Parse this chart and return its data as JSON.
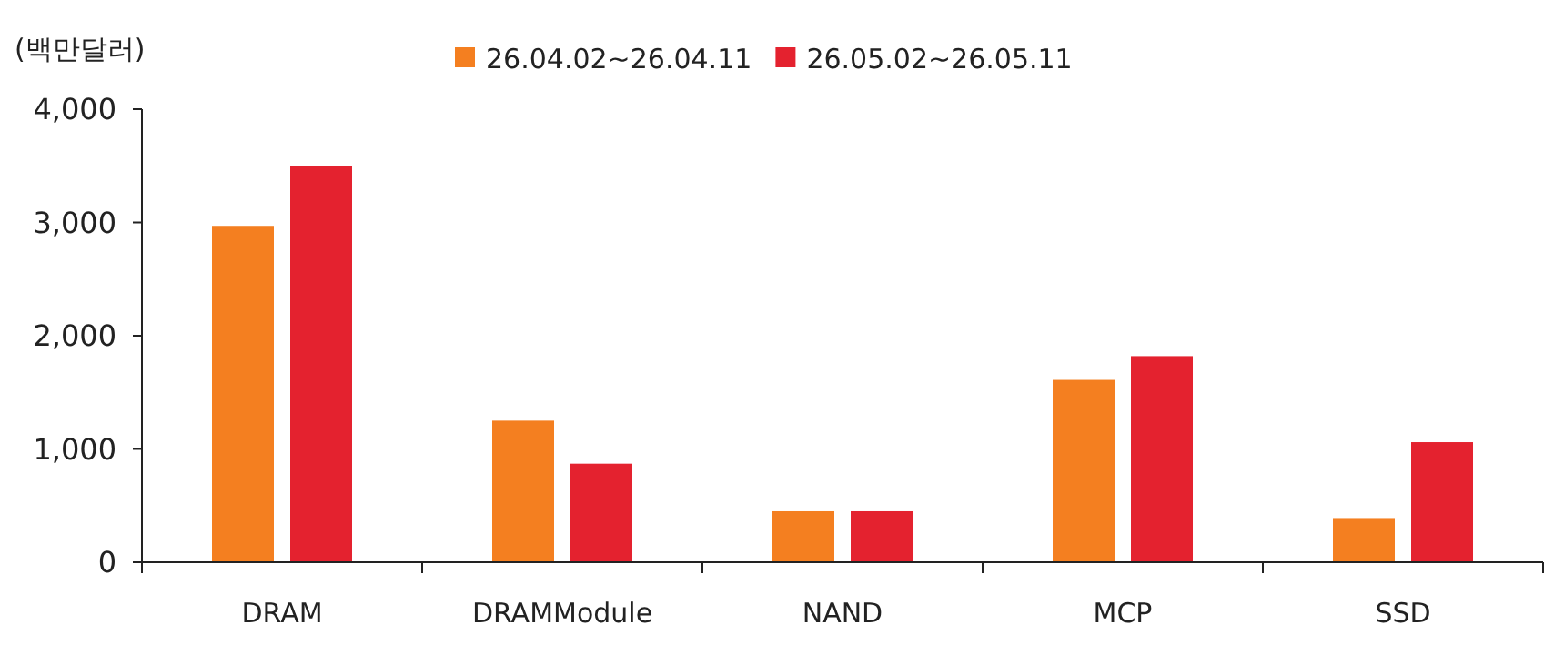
{
  "chart_data": {
    "type": "bar",
    "ylabel": "(백만달러)",
    "categories": [
      "DRAM",
      "DRAMModule",
      "NAND",
      "MCP",
      "SSD"
    ],
    "series": [
      {
        "name": "26.04.02~26.04.11",
        "color": "#f47f20",
        "values": [
          2970,
          1250,
          450,
          1610,
          390
        ]
      },
      {
        "name": "26.05.02~26.05.11",
        "color": "#e4222f",
        "values": [
          3500,
          870,
          450,
          1820,
          1060
        ]
      }
    ],
    "ylim": [
      0,
      4000
    ],
    "yticks": [
      {
        "value": 0,
        "label": "0"
      },
      {
        "value": 1000,
        "label": "1,000"
      },
      {
        "value": 2000,
        "label": "2,000"
      },
      {
        "value": 3000,
        "label": "3,000"
      },
      {
        "value": 4000,
        "label": "4,000"
      }
    ],
    "grid": false,
    "legend": "top"
  }
}
